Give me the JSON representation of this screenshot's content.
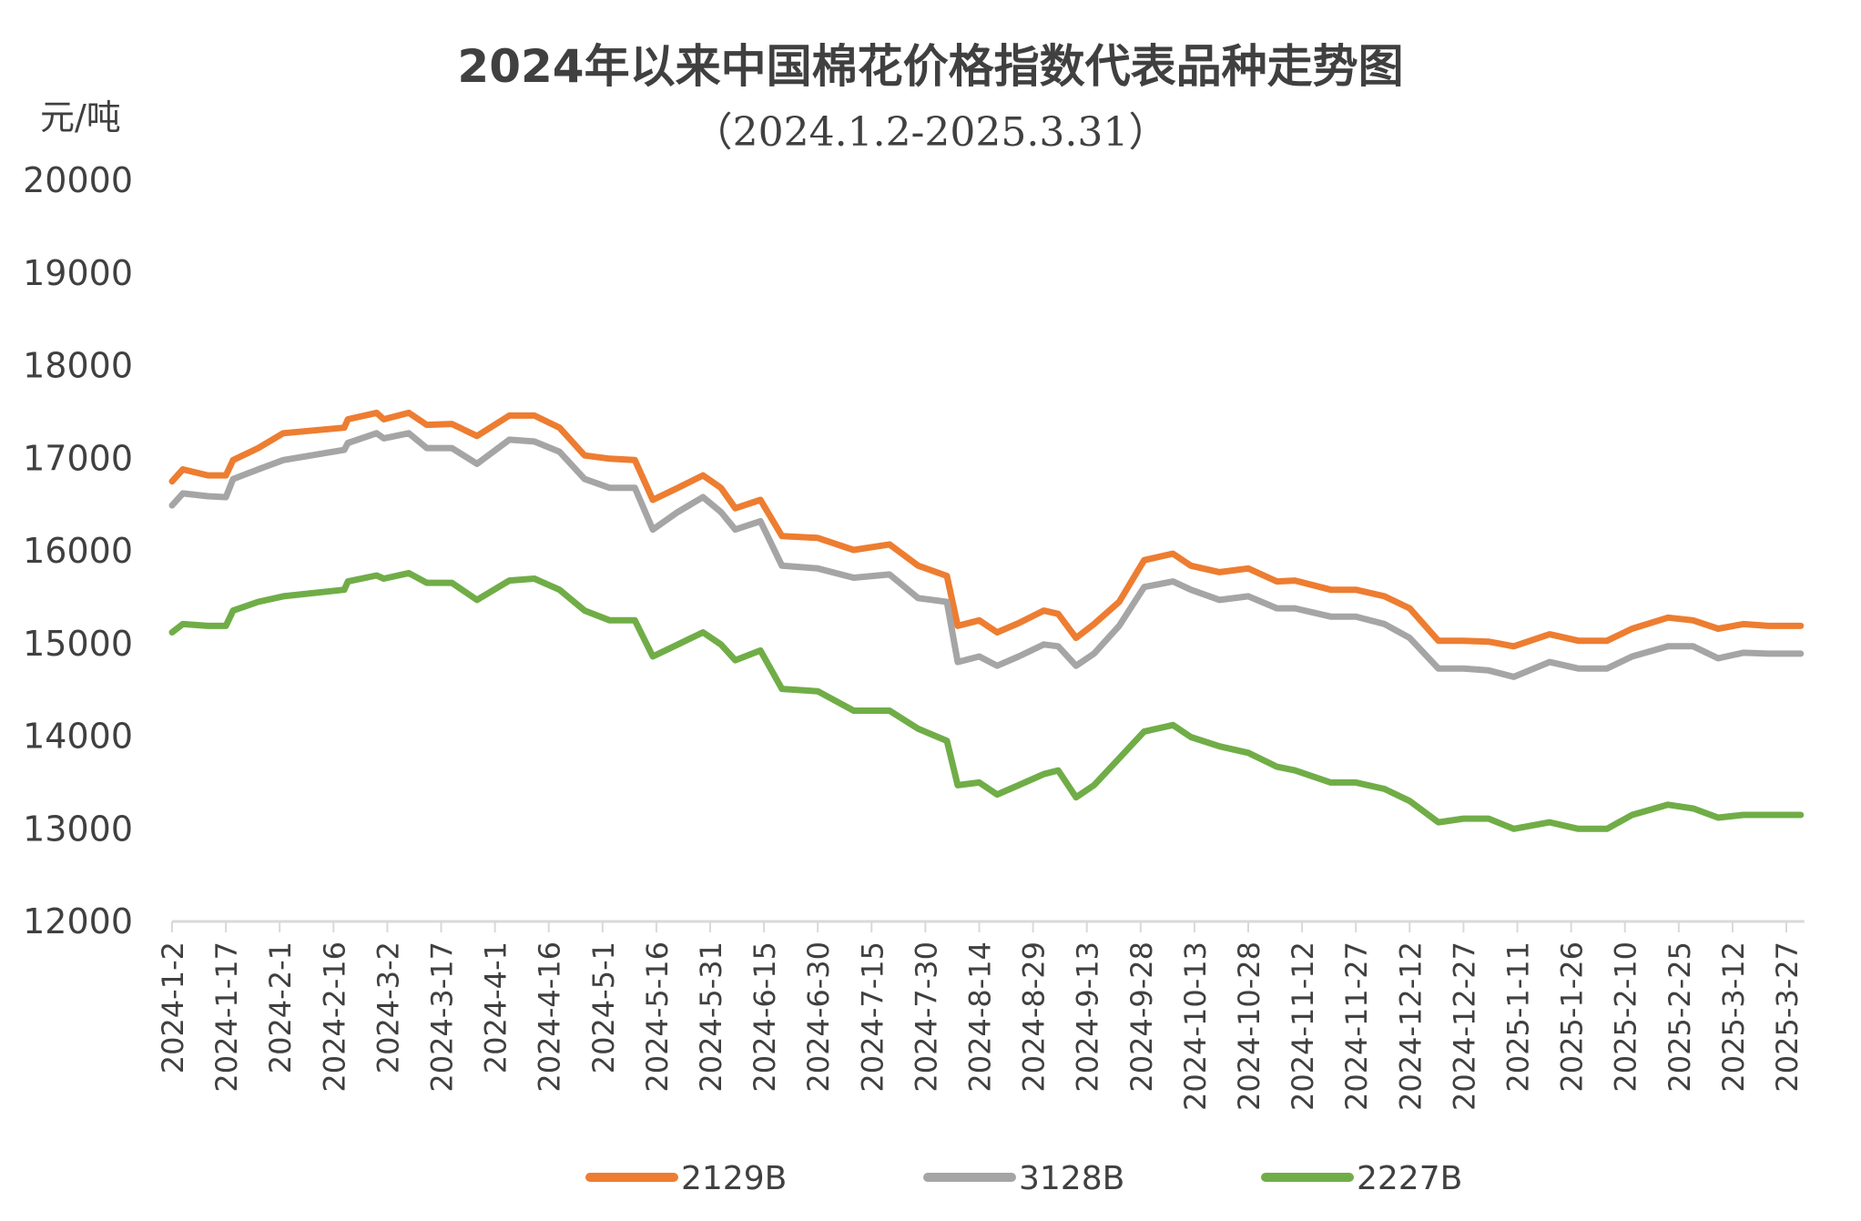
{
  "chart_data": {
    "type": "line",
    "title": "2024年以来中国棉花价格指数代表品种走势图",
    "subtitle": "（2024.1.2-2025.3.31）",
    "ylabel": "元/吨",
    "xlabel": "",
    "ylim": [
      12000,
      20000
    ],
    "yticks": [
      12000,
      13000,
      14000,
      15000,
      16000,
      17000,
      18000,
      19000,
      20000
    ],
    "xrange": [
      "2024-01-02",
      "2025-03-31"
    ],
    "xticks": [
      "2024-1-2",
      "2024-1-17",
      "2024-2-1",
      "2024-2-16",
      "2024-3-2",
      "2024-3-17",
      "2024-4-1",
      "2024-4-16",
      "2024-5-1",
      "2024-5-16",
      "2024-5-31",
      "2024-6-15",
      "2024-6-30",
      "2024-7-15",
      "2024-7-30",
      "2024-8-14",
      "2024-8-29",
      "2024-9-13",
      "2024-9-28",
      "2024-10-13",
      "2024-10-28",
      "2024-11-12",
      "2024-11-27",
      "2024-12-12",
      "2024-12-27",
      "2025-1-11",
      "2025-1-26",
      "2025-2-10",
      "2025-2-25",
      "2025-3-12",
      "2025-3-27"
    ],
    "grid": false,
    "legend_position": "bottom",
    "x": [
      "2024-01-02",
      "2024-01-05",
      "2024-01-12",
      "2024-01-17",
      "2024-01-19",
      "2024-01-26",
      "2024-02-02",
      "2024-02-19",
      "2024-02-20",
      "2024-02-28",
      "2024-03-01",
      "2024-03-08",
      "2024-03-13",
      "2024-03-20",
      "2024-03-27",
      "2024-04-05",
      "2024-04-12",
      "2024-04-19",
      "2024-04-26",
      "2024-05-03",
      "2024-05-10",
      "2024-05-15",
      "2024-05-22",
      "2024-05-29",
      "2024-06-03",
      "2024-06-07",
      "2024-06-14",
      "2024-06-20",
      "2024-06-30",
      "2024-07-10",
      "2024-07-20",
      "2024-07-28",
      "2024-08-05",
      "2024-08-08",
      "2024-08-14",
      "2024-08-19",
      "2024-08-25",
      "2024-09-01",
      "2024-09-05",
      "2024-09-10",
      "2024-09-15",
      "2024-09-22",
      "2024-09-29",
      "2024-10-07",
      "2024-10-12",
      "2024-10-20",
      "2024-10-28",
      "2024-11-05",
      "2024-11-10",
      "2024-11-20",
      "2024-11-27",
      "2024-12-05",
      "2024-12-12",
      "2024-12-20",
      "2024-12-27",
      "2025-01-03",
      "2025-01-10",
      "2025-01-20",
      "2025-01-28",
      "2025-02-05",
      "2025-02-12",
      "2025-02-22",
      "2025-03-01",
      "2025-03-08",
      "2025-03-15",
      "2025-03-22",
      "2025-03-31"
    ],
    "series": [
      {
        "name": "2129B",
        "color": "#ED7D31",
        "values": [
          16750,
          16880,
          16815,
          16815,
          16980,
          17110,
          17270,
          17330,
          17420,
          17490,
          17420,
          17490,
          17360,
          17370,
          17240,
          17460,
          17460,
          17330,
          17030,
          16995,
          16980,
          16550,
          16680,
          16815,
          16680,
          16460,
          16550,
          16160,
          16140,
          16010,
          16070,
          15840,
          15730,
          15190,
          15250,
          15120,
          15220,
          15355,
          15320,
          15060,
          15210,
          15450,
          15900,
          15970,
          15840,
          15770,
          15810,
          15670,
          15680,
          15580,
          15580,
          15510,
          15380,
          15030,
          15030,
          15020,
          14970,
          15100,
          15030,
          15030,
          15160,
          15280,
          15250,
          15160,
          15210,
          15190,
          15190
        ]
      },
      {
        "name": "3128B",
        "color": "#A5A5A5",
        "values": [
          16490,
          16620,
          16590,
          16580,
          16775,
          16880,
          16980,
          17090,
          17165,
          17270,
          17215,
          17270,
          17110,
          17110,
          16940,
          17200,
          17180,
          17070,
          16775,
          16680,
          16680,
          16230,
          16420,
          16580,
          16420,
          16230,
          16320,
          15840,
          15810,
          15710,
          15745,
          15490,
          15450,
          14800,
          14860,
          14760,
          14860,
          14990,
          14970,
          14760,
          14890,
          15190,
          15610,
          15670,
          15580,
          15470,
          15510,
          15380,
          15380,
          15290,
          15290,
          15210,
          15060,
          14730,
          14730,
          14710,
          14640,
          14800,
          14730,
          14730,
          14860,
          14970,
          14970,
          14840,
          14900,
          14890,
          14890
        ]
      },
      {
        "name": "2227B",
        "color": "#70AD47",
        "values": [
          15120,
          15210,
          15190,
          15190,
          15355,
          15450,
          15510,
          15580,
          15670,
          15735,
          15700,
          15760,
          15655,
          15655,
          15470,
          15680,
          15700,
          15580,
          15355,
          15250,
          15250,
          14860,
          14990,
          15120,
          14990,
          14820,
          14925,
          14510,
          14485,
          14275,
          14275,
          14080,
          13950,
          13470,
          13500,
          13370,
          13470,
          13590,
          13630,
          13340,
          13470,
          13760,
          14050,
          14120,
          13990,
          13890,
          13820,
          13670,
          13630,
          13500,
          13500,
          13430,
          13300,
          13070,
          13110,
          13110,
          13000,
          13070,
          13000,
          13000,
          13150,
          13260,
          13220,
          13120,
          13150,
          13150,
          13150
        ]
      }
    ]
  }
}
